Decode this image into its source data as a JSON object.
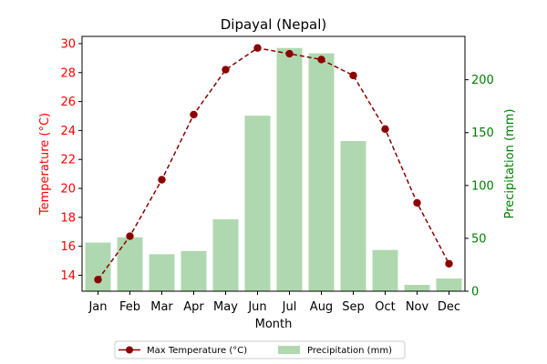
{
  "chart_data": {
    "type": "bar+line",
    "title": "Dipayal (Nepal)",
    "xlabel": "Month",
    "categories": [
      "Jan",
      "Feb",
      "Mar",
      "Apr",
      "May",
      "Jun",
      "Jul",
      "Aug",
      "Sep",
      "Oct",
      "Nov",
      "Dec"
    ],
    "left_axis": {
      "label": "Temperature (°C)",
      "color": "#ff0000",
      "range": [
        12.9,
        30.5
      ],
      "ticks": [
        14,
        16,
        18,
        20,
        22,
        24,
        26,
        28,
        30
      ]
    },
    "right_axis": {
      "label": "Precipitation (mm)",
      "color": "#008000",
      "range": [
        0,
        241
      ],
      "ticks": [
        0,
        50,
        100,
        150,
        200
      ]
    },
    "series": [
      {
        "name": "Max Temperature (°C)",
        "kind": "line",
        "axis": "left",
        "color": "#8b0000",
        "style": "dashed, circle markers",
        "values": [
          13.7,
          16.7,
          20.6,
          25.1,
          28.2,
          29.7,
          29.3,
          28.9,
          27.8,
          24.1,
          19.0,
          14.8
        ]
      },
      {
        "name": "Precipitation (mm)",
        "kind": "bar",
        "axis": "right",
        "color": "#b0d8b0",
        "values": [
          46,
          51,
          35,
          38,
          68,
          166,
          230,
          225,
          142,
          39,
          6,
          12
        ]
      }
    ],
    "legend": {
      "placement": "bottom-center",
      "items": [
        "Max Temperature (°C)",
        "Precipitation (mm)"
      ]
    }
  }
}
